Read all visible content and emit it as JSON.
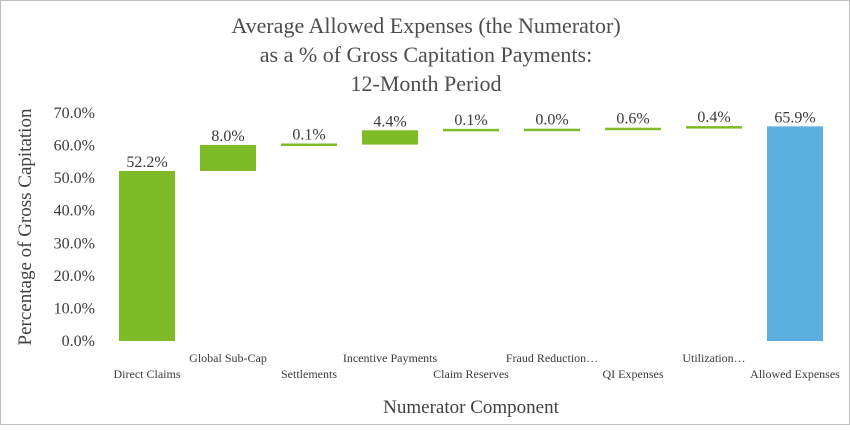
{
  "chart_data": {
    "type": "bar",
    "subtype": "waterfall",
    "title_lines": [
      "Average Allowed Expenses (the Numerator)",
      "as a % of Gross Capitation Payments:",
      "12-Month Period"
    ],
    "xlabel": "Numerator Component",
    "ylabel": "Percentage of Gross Capitation",
    "ylim": [
      0,
      70
    ],
    "ytick_step": 10,
    "ytick_labels": [
      "0.0%",
      "10.0%",
      "20.0%",
      "30.0%",
      "40.0%",
      "50.0%",
      "60.0%",
      "70.0%"
    ],
    "grid": false,
    "legend": "none",
    "categories": [
      "Direct Claims",
      "Global Sub-Cap",
      "Settlements",
      "Incentive Payments",
      "Claim Reserves",
      "Fraud Reduction…",
      "QI Expenses",
      "Utilization…",
      "Allowed Expenses"
    ],
    "values": [
      52.2,
      8.0,
      0.1,
      4.4,
      0.1,
      0.0,
      0.6,
      0.4,
      65.9
    ],
    "data_labels": [
      "52.2%",
      "8.0%",
      "0.1%",
      "4.4%",
      "0.1%",
      "0.0%",
      "0.6%",
      "0.4%",
      "65.9%"
    ],
    "bar_kinds": [
      "increase",
      "increase",
      "increase",
      "increase",
      "increase",
      "increase",
      "increase",
      "increase",
      "total"
    ],
    "colors": {
      "increase": "#7fba27",
      "total": "#5bb0e0"
    }
  }
}
